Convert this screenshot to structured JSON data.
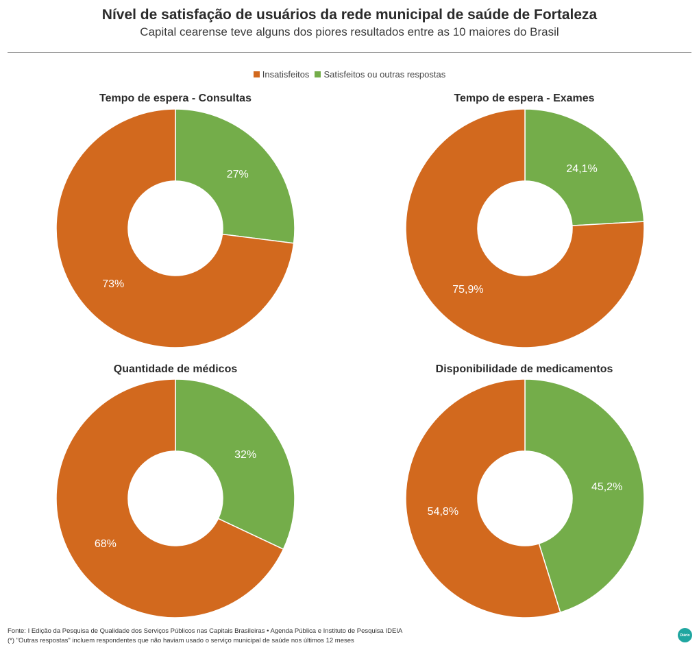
{
  "header": {
    "title": "Nível de satisfação de usuários da rede municipal de saúde de Fortaleza",
    "subtitle": "Capital cearense teve alguns dos piores resultados entre as 10 maiores do Brasil"
  },
  "legend": {
    "items": [
      {
        "label": "Insatisfeitos",
        "color": "#d2691e"
      },
      {
        "label": "Satisfeitos ou outras respostas",
        "color": "#74ad4a"
      }
    ]
  },
  "chart_data": [
    {
      "type": "pie",
      "title": "Tempo de espera - Consultas",
      "labels": [
        "Insatisfeitos",
        "Satisfeitos ou outras respostas"
      ],
      "values": [
        73,
        27
      ],
      "value_labels": [
        "73%",
        "27%"
      ],
      "colors": [
        "#d2691e",
        "#74ad4a"
      ]
    },
    {
      "type": "pie",
      "title": "Tempo de espera - Exames",
      "labels": [
        "Insatisfeitos",
        "Satisfeitos ou outras respostas"
      ],
      "values": [
        75.9,
        24.1
      ],
      "value_labels": [
        "75,9%",
        "24,1%"
      ],
      "colors": [
        "#d2691e",
        "#74ad4a"
      ]
    },
    {
      "type": "pie",
      "title": "Quantidade de médicos",
      "labels": [
        "Insatisfeitos",
        "Satisfeitos ou outras respostas"
      ],
      "values": [
        68,
        32
      ],
      "value_labels": [
        "68%",
        "32%"
      ],
      "colors": [
        "#d2691e",
        "#74ad4a"
      ]
    },
    {
      "type": "pie",
      "title": "Disponibilidade de medicamentos",
      "labels": [
        "Insatisfeitos",
        "Satisfeitos ou outras respostas"
      ],
      "values": [
        54.8,
        45.2
      ],
      "value_labels": [
        "54,8%",
        "45,2%"
      ],
      "colors": [
        "#d2691e",
        "#74ad4a"
      ]
    }
  ],
  "footer": {
    "source": "Fonte: I Edição da Pesquisa de Qualidade dos Serviços Públicos nas Capitais Brasileiras • Agenda Pública e Instituto de Pesquisa IDEIA",
    "note": "(*) \"Outras respostas\" incluem respondentes que não haviam usado o serviço municipal de saúde nos últimos 12 meses",
    "logo_text": "Diário"
  }
}
